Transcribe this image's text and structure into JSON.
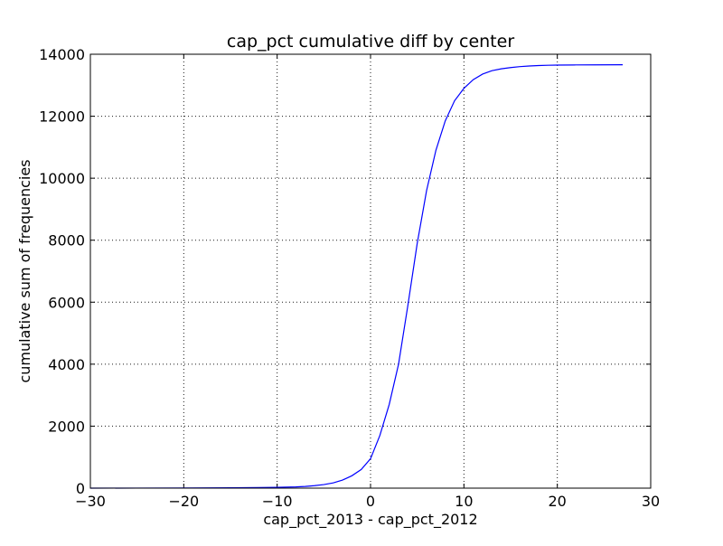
{
  "chart_data": {
    "type": "line",
    "title": "cap_pct cumulative diff by center",
    "xlabel": "cap_pct_2013 - cap_pct_2012",
    "ylabel": "cumulative sum of frequencies",
    "xlim": [
      -30,
      30
    ],
    "ylim": [
      0,
      14000
    ],
    "xticks": [
      -30,
      -20,
      -10,
      0,
      10,
      20,
      30
    ],
    "xtick_labels": [
      "−30",
      "−20",
      "−10",
      "0",
      "10",
      "20",
      "30"
    ],
    "yticks": [
      0,
      2000,
      4000,
      6000,
      8000,
      10000,
      12000,
      14000
    ],
    "ytick_labels": [
      "0",
      "2000",
      "4000",
      "6000",
      "8000",
      "10000",
      "12000",
      "14000"
    ],
    "grid": true,
    "series": [
      {
        "color": "#0000ff",
        "x": [
          -30,
          -25,
          -20,
          -15,
          -12,
          -10,
          -8,
          -7,
          -6,
          -5,
          -4,
          -3,
          -2,
          -1,
          0,
          1,
          2,
          3,
          4,
          5,
          6,
          7,
          8,
          9,
          10,
          11,
          12,
          13,
          14,
          15,
          16,
          17,
          18,
          19,
          20,
          22,
          24,
          27
        ],
        "y": [
          0,
          2,
          5,
          12,
          20,
          28,
          40,
          55,
          80,
          115,
          170,
          260,
          400,
          600,
          950,
          1700,
          2700,
          4000,
          5900,
          7900,
          9600,
          10900,
          11850,
          12500,
          12900,
          13180,
          13360,
          13470,
          13530,
          13570,
          13600,
          13620,
          13635,
          13645,
          13650,
          13655,
          13658,
          13660
        ]
      }
    ]
  }
}
